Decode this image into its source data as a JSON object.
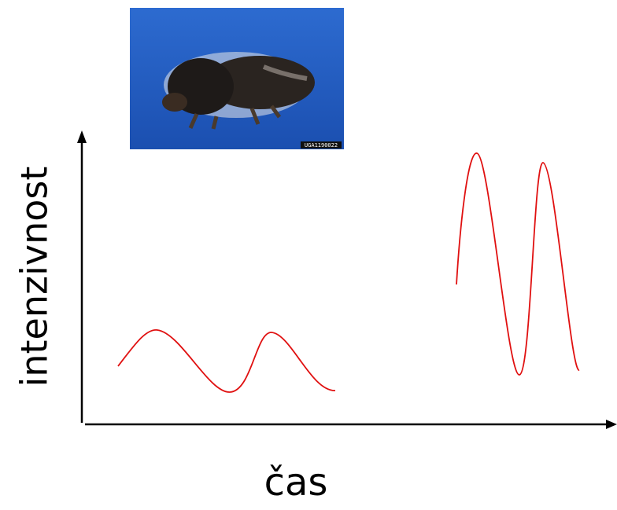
{
  "axes": {
    "y_label": "intenzivnost",
    "x_label": "čas"
  },
  "image": {
    "caption": "UGA1190022"
  }
}
